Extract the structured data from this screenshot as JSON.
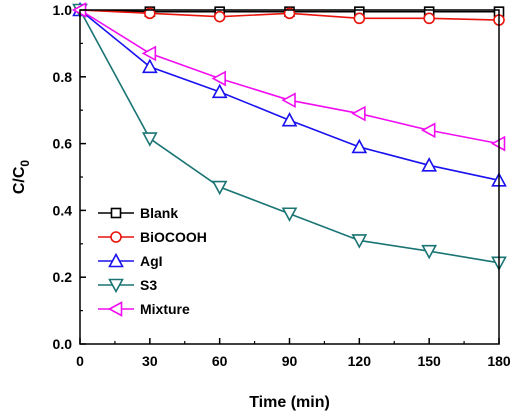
{
  "chart_data": {
    "type": "line",
    "xlabel": "Time (min)",
    "ylabel_main": "C/C",
    "ylabel_sub": "0",
    "xlim": [
      0,
      180
    ],
    "ylim": [
      0.0,
      1.0
    ],
    "xticks": [
      0,
      30,
      60,
      90,
      120,
      150,
      180
    ],
    "yticks": [
      0.0,
      0.2,
      0.4,
      0.6,
      0.8,
      1.0
    ],
    "xtick_labels": [
      "0",
      "30",
      "60",
      "90",
      "120",
      "150",
      "180"
    ],
    "ytick_labels": [
      "0.0",
      "0.2",
      "0.4",
      "0.6",
      "0.8",
      "1.0"
    ],
    "grid": false,
    "legend_position": "lower-left",
    "x": [
      0,
      30,
      60,
      90,
      120,
      150,
      180
    ],
    "series": [
      {
        "name": "Blank",
        "marker": "square",
        "color": "#000000",
        "values": [
          1.0,
          0.995,
          0.995,
          0.995,
          0.995,
          0.995,
          0.995
        ]
      },
      {
        "name": "BiOCOOH",
        "marker": "circle",
        "color": "#e8140c",
        "values": [
          1.0,
          0.99,
          0.98,
          0.99,
          0.975,
          0.975,
          0.97
        ]
      },
      {
        "name": "AgI",
        "marker": "triangle-up",
        "color": "#1a12ee",
        "values": [
          1.0,
          0.83,
          0.755,
          0.67,
          0.59,
          0.535,
          0.49
        ]
      },
      {
        "name": "S3",
        "marker": "triangle-down",
        "color": "#1a7474",
        "values": [
          1.0,
          0.615,
          0.47,
          0.39,
          0.31,
          0.278,
          0.243
        ]
      },
      {
        "name": "Mixture",
        "marker": "triangle-left",
        "color": "#f00ef0",
        "values": [
          1.0,
          0.87,
          0.795,
          0.73,
          0.69,
          0.64,
          0.6
        ]
      }
    ]
  }
}
